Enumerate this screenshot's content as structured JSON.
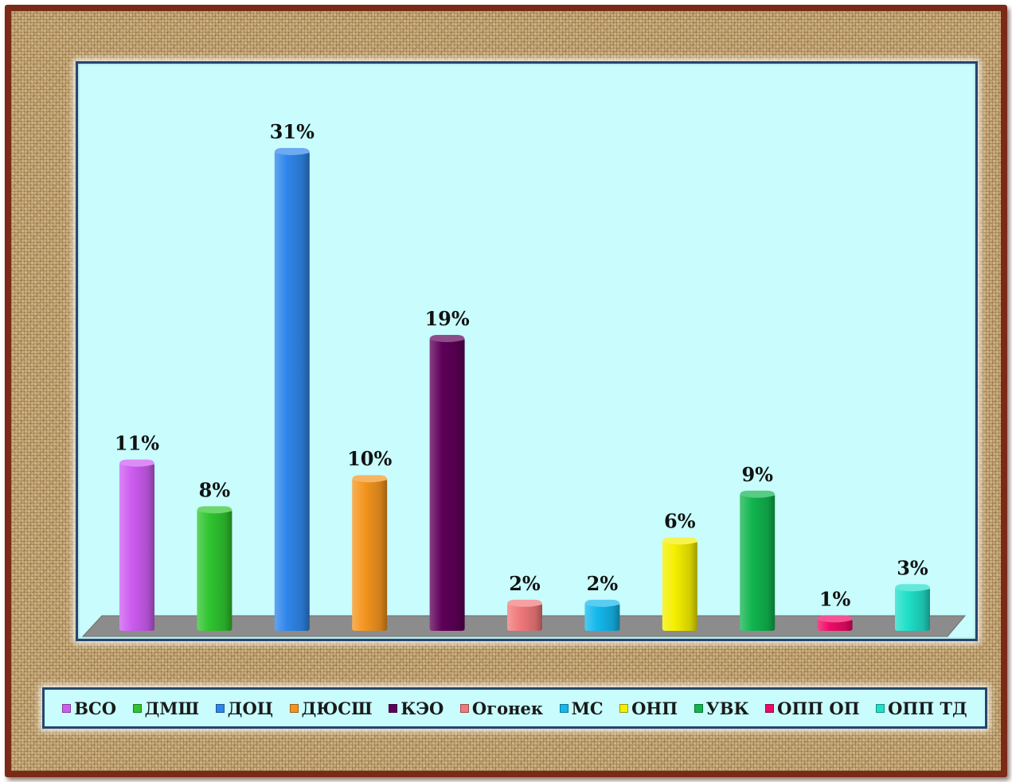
{
  "chart_data": {
    "type": "bar",
    "categories": [
      "ВСО",
      "ДМШ",
      "ДОЦ",
      "ДЮСШ",
      "КЭО",
      "Огонек",
      "МС",
      "ОНП",
      "УВК",
      "ОПП ОП",
      "ОПП ТД"
    ],
    "values": [
      11,
      8,
      31,
      10,
      19,
      2,
      2,
      6,
      9,
      1,
      3
    ],
    "data_labels": [
      "11%",
      "8%",
      "31%",
      "10%",
      "19%",
      "2%",
      "2%",
      "6%",
      "9%",
      "1%",
      "3%"
    ],
    "colors": [
      "#cc5cf0",
      "#2fc42f",
      "#2f86ea",
      "#f4951f",
      "#5e0058",
      "#f0797a",
      "#14b8ec",
      "#f5ef00",
      "#11b54f",
      "#ee0a66",
      "#20e0c8"
    ],
    "unit": "%",
    "ylim": [
      0,
      31
    ],
    "grid": false,
    "legend_position": "bottom",
    "style": "3d-cylinder-bars"
  }
}
